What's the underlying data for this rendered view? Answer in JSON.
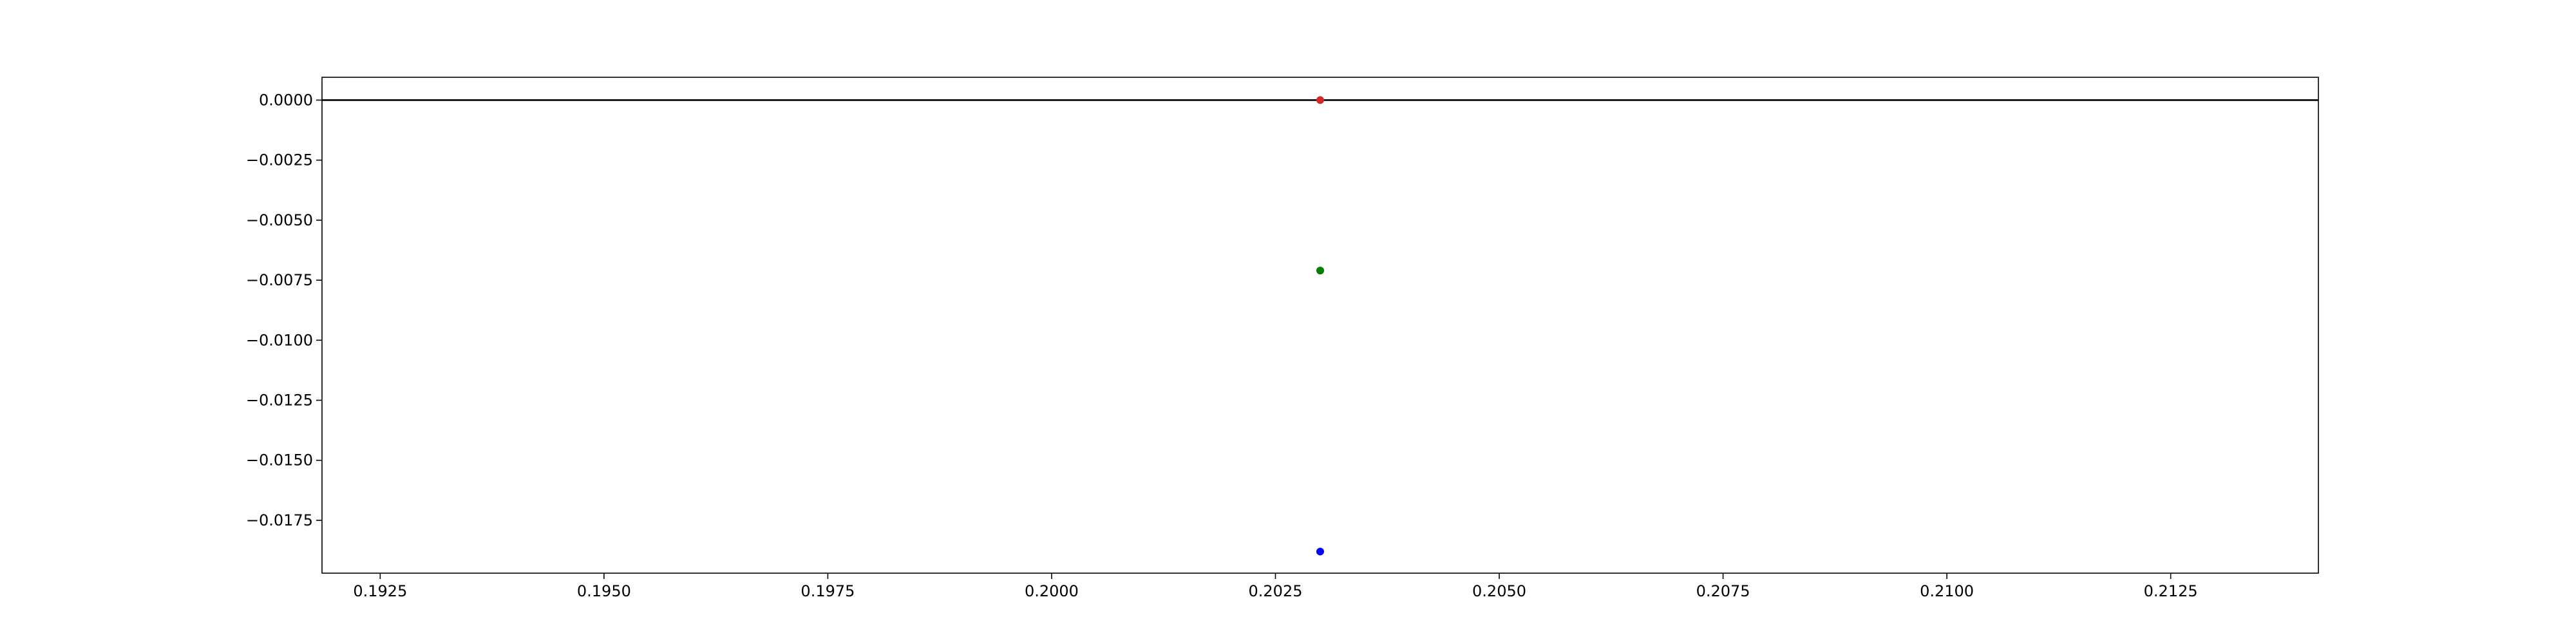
{
  "chart_data": {
    "type": "scatter",
    "title": "",
    "xlabel": "",
    "ylabel": "",
    "xlim": [
      0.19185,
      0.21415
    ],
    "ylim": [
      -0.0197,
      0.00095
    ],
    "grid": false,
    "xticks": [
      {
        "value": 0.1925,
        "label": "0.1925"
      },
      {
        "value": 0.195,
        "label": "0.1950"
      },
      {
        "value": 0.1975,
        "label": "0.1975"
      },
      {
        "value": 0.2,
        "label": "0.2000"
      },
      {
        "value": 0.2025,
        "label": "0.2025"
      },
      {
        "value": 0.205,
        "label": "0.2050"
      },
      {
        "value": 0.2075,
        "label": "0.2075"
      },
      {
        "value": 0.21,
        "label": "0.2100"
      },
      {
        "value": 0.2125,
        "label": "0.2125"
      }
    ],
    "yticks": [
      {
        "value": 0.0,
        "label": "0.0000"
      },
      {
        "value": -0.0025,
        "label": "−0.0025"
      },
      {
        "value": -0.005,
        "label": "−0.0050"
      },
      {
        "value": -0.0075,
        "label": "−0.0075"
      },
      {
        "value": -0.01,
        "label": "−0.0100"
      },
      {
        "value": -0.0125,
        "label": "−0.0125"
      },
      {
        "value": -0.015,
        "label": "−0.0150"
      },
      {
        "value": -0.0175,
        "label": "−0.0175"
      }
    ],
    "hline": {
      "y": 0.0,
      "color": "#000000"
    },
    "points": [
      {
        "x": 0.203,
        "y": 0.0,
        "color": "#d62728"
      },
      {
        "x": 0.203,
        "y": -0.0071,
        "color": "#008000"
      },
      {
        "x": 0.203,
        "y": -0.0188,
        "color": "#0000ff"
      }
    ]
  }
}
